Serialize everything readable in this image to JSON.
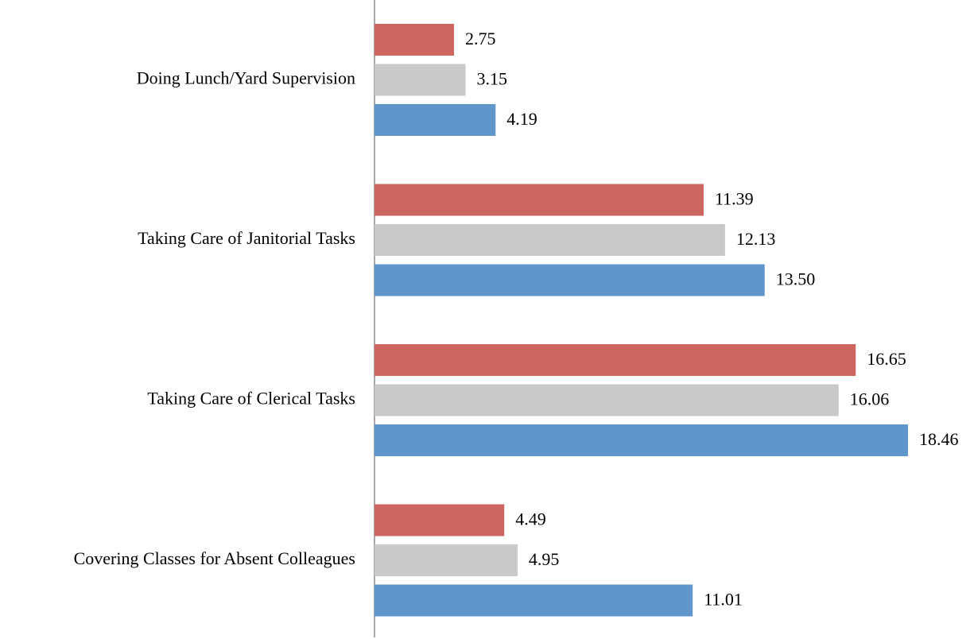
{
  "chart_data": {
    "type": "hbar",
    "categories": [
      "Doing Lunch/Yard Supervision",
      "Taking Care of Janitorial Tasks",
      "Taking Care of Clerical Tasks",
      "Covering Classes for Absent Colleagues"
    ],
    "series": [
      {
        "color": "#cd6660",
        "values": [
          2.75,
          11.39,
          16.65,
          4.49
        ],
        "value_labels": [
          "2.75",
          "11.39",
          "16.65",
          "4.49"
        ]
      },
      {
        "color": "#c9c9c9",
        "values": [
          3.15,
          12.13,
          16.06,
          4.95
        ],
        "value_labels": [
          "3.15",
          "12.13",
          "16.06",
          "4.95"
        ]
      },
      {
        "color": "#6096cb",
        "values": [
          4.19,
          13.5,
          18.46,
          11.01
        ],
        "value_labels": [
          "4.19",
          "13.50",
          "18.46",
          "11.01"
        ]
      }
    ]
  }
}
